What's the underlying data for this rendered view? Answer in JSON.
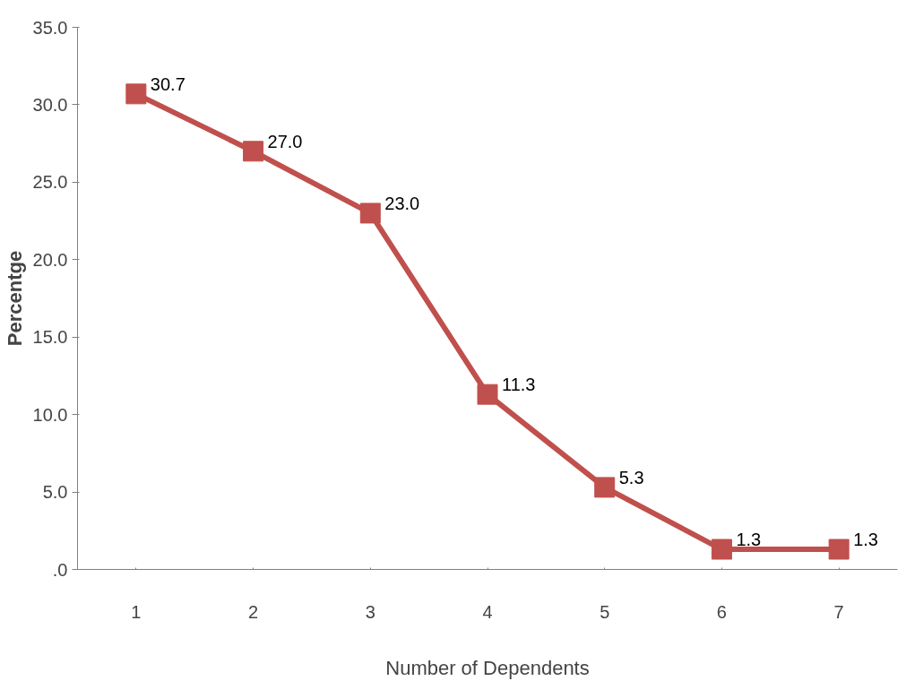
{
  "chart_data": {
    "type": "line",
    "xlabel": "Number of Dependents",
    "ylabel": "Percentge",
    "categories": [
      "1",
      "2",
      "3",
      "4",
      "5",
      "6",
      "7"
    ],
    "series": [
      {
        "color": "#c0504d",
        "values": [
          30.7,
          27.0,
          23.0,
          11.3,
          5.3,
          1.3,
          1.3
        ],
        "value_labels": [
          "30.7",
          "27.0",
          "23.0",
          "11.3",
          "5.3",
          "1.3",
          "1.3"
        ]
      }
    ],
    "ylim": [
      0,
      35
    ],
    "yticks": [
      {
        "value": 0,
        "label": ".0"
      },
      {
        "value": 5,
        "label": "5.0"
      },
      {
        "value": 10,
        "label": "10.0"
      },
      {
        "value": 15,
        "label": "15.0"
      },
      {
        "value": 20,
        "label": "20.0"
      },
      {
        "value": 25,
        "label": "25.0"
      },
      {
        "value": 30,
        "label": "30.0"
      },
      {
        "value": 35,
        "label": "35.0"
      }
    ],
    "grid": false,
    "marker": "square",
    "line_style": "solid"
  }
}
